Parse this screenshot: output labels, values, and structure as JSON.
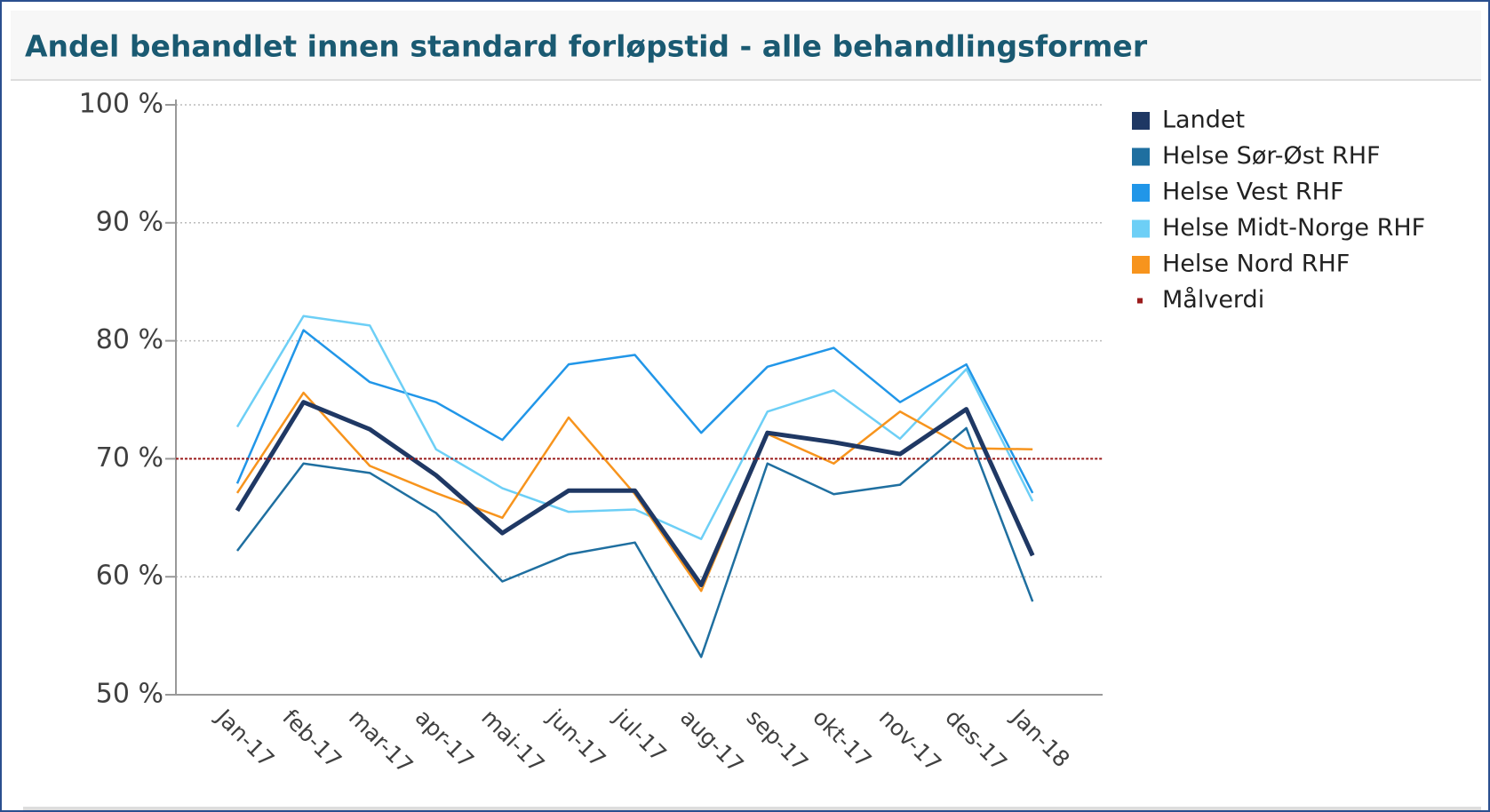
{
  "chart_data": {
    "type": "line",
    "title": "Andel behandlet innen standard forløpstid - alle behandlingsformer",
    "categories": [
      "Jan-17",
      "feb-17",
      "mar-17",
      "apr-17",
      "mai-17",
      "jun-17",
      "jul-17",
      "aug-17",
      "sep-17",
      "okt-17",
      "nov-17",
      "des-17",
      "Jan-18"
    ],
    "series": [
      {
        "name": "Landet",
        "color": "#1f3864",
        "values": [
          65.6,
          74.8,
          72.5,
          68.6,
          63.7,
          67.3,
          67.3,
          59.3,
          72.2,
          71.4,
          70.4,
          74.2,
          61.8
        ]
      },
      {
        "name": "Helse Sør-Øst RHF",
        "color": "#1f6fa0",
        "values": [
          62.2,
          69.6,
          68.8,
          65.4,
          59.6,
          61.9,
          62.9,
          53.2,
          69.6,
          67.0,
          67.8,
          72.6,
          57.9
        ]
      },
      {
        "name": "Helse Vest RHF",
        "color": "#2196e8",
        "values": [
          67.9,
          80.9,
          76.5,
          74.8,
          71.6,
          78.0,
          78.8,
          72.2,
          77.8,
          79.4,
          74.8,
          78.0,
          67.1
        ]
      },
      {
        "name": "Helse Midt-Norge RHF",
        "color": "#6dcff6",
        "values": [
          72.7,
          82.1,
          81.3,
          70.8,
          67.5,
          65.5,
          65.7,
          63.2,
          74.0,
          75.8,
          71.7,
          77.6,
          66.4
        ]
      },
      {
        "name": "Helse Nord RHF",
        "color": "#f7941d",
        "values": [
          67.1,
          75.6,
          69.4,
          67.1,
          65.0,
          73.5,
          67.0,
          58.8,
          72.1,
          69.6,
          74.0,
          70.9,
          70.8
        ]
      },
      {
        "name": "Målverdi",
        "color": "#9b1c1c",
        "values": [
          70,
          70,
          70,
          70,
          70,
          70,
          70,
          70,
          70,
          70,
          70,
          70,
          70
        ]
      }
    ],
    "ylim": [
      50,
      100
    ],
    "yticks": [
      {
        "value": 50,
        "label": "50 %"
      },
      {
        "value": 60,
        "label": "60 %"
      },
      {
        "value": 70,
        "label": "70 %"
      },
      {
        "value": 80,
        "label": "80 %"
      },
      {
        "value": 90,
        "label": "90 %"
      },
      {
        "value": 100,
        "label": "100 %"
      }
    ],
    "grid": true
  }
}
